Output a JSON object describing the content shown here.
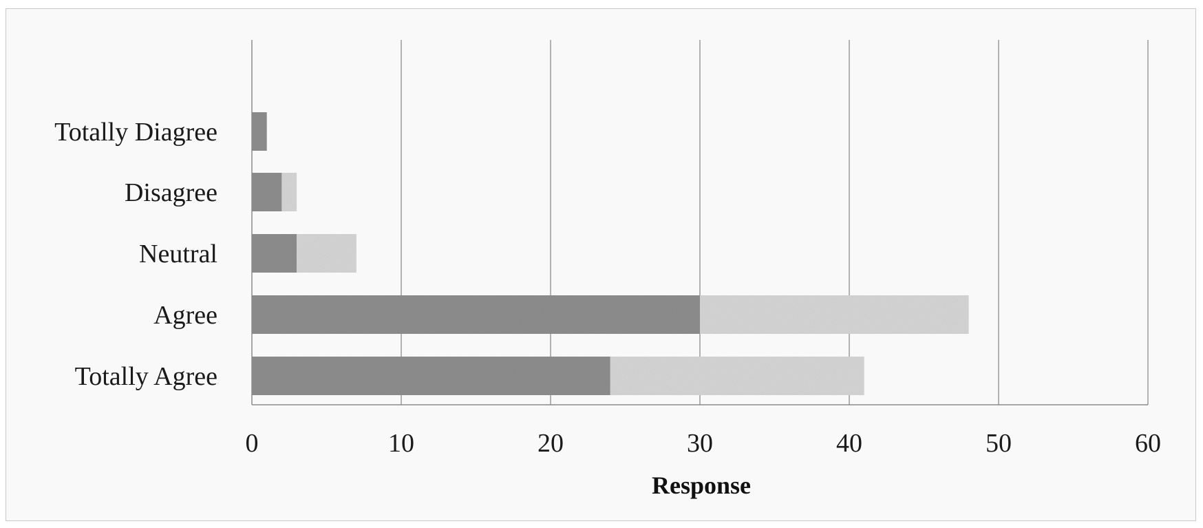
{
  "chart_data": {
    "type": "bar",
    "orientation": "horizontal",
    "stacked": true,
    "categories": [
      "Totally Diagree",
      "Disagree",
      "Neutral",
      "Agree",
      "Totally Agree"
    ],
    "series": [
      {
        "values": [
          1,
          2,
          3,
          30,
          24
        ],
        "color": "#8e8e8e"
      },
      {
        "values": [
          0,
          1,
          4,
          18,
          17
        ],
        "color": "#d6d6d6"
      }
    ],
    "xlabel": "Response",
    "ylabel": "",
    "title": "",
    "xlim": [
      0,
      60
    ],
    "xticks": [
      "0",
      "10",
      "20",
      "30",
      "40",
      "50",
      "60"
    ],
    "grid": "vertical",
    "legend": "none"
  }
}
